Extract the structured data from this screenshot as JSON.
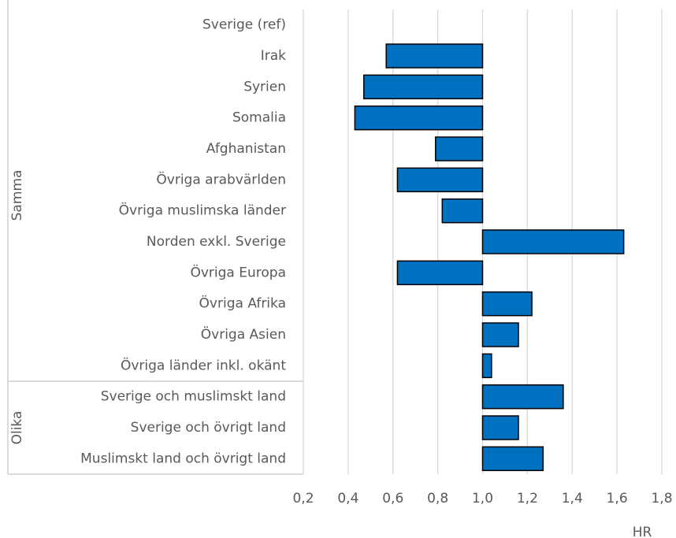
{
  "chart_data": {
    "type": "bar",
    "orientation": "horizontal",
    "categories": [
      "Sverige (ref)",
      "Irak",
      "Syrien",
      "Somalia",
      "Afghanistan",
      "Övriga arabvärlden",
      "Övriga muslimska länder",
      "Norden exkl. Sverige",
      "Övriga Europa",
      "Övriga Afrika",
      "Övriga Asien",
      "Övriga länder inkl. okänt",
      "Sverige och muslimskt land",
      "Sverige och övrigt land",
      "Muslimskt land och övrigt land"
    ],
    "values": [
      1,
      0.57,
      0.47,
      0.43,
      0.79,
      0.62,
      0.82,
      1.63,
      0.62,
      1.22,
      1.16,
      1.04,
      1.36,
      1.16,
      1.27
    ],
    "groups": [
      {
        "label": "Samma",
        "count": 12
      },
      {
        "label": "Olika",
        "count": 3
      }
    ],
    "base": 1,
    "color": "#0070c0",
    "xlabel": "HR",
    "xlim": [
      0.2,
      1.8
    ],
    "xticks": [
      {
        "value": 0.2,
        "label": "0,2"
      },
      {
        "value": 0.4,
        "label": "0,4"
      },
      {
        "value": 0.6,
        "label": "0,6"
      },
      {
        "value": 0.8,
        "label": "0,8"
      },
      {
        "value": 1.0,
        "label": "1,0"
      },
      {
        "value": 1.2,
        "label": "1,2"
      },
      {
        "value": 1.4,
        "label": "1,4"
      },
      {
        "value": 1.6,
        "label": "1,6"
      },
      {
        "value": 1.8,
        "label": "1,8"
      }
    ],
    "grid": true
  }
}
